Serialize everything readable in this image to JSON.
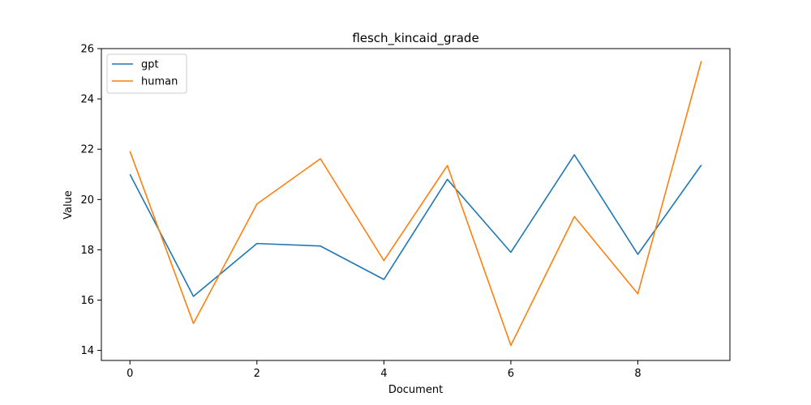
{
  "chart_data": {
    "type": "line",
    "title": "flesch_kincaid_grade",
    "xlabel": "Document",
    "ylabel": "Value",
    "x": [
      0,
      1,
      2,
      3,
      4,
      5,
      6,
      7,
      8,
      9
    ],
    "xlim": [
      -0.45,
      9.45
    ],
    "ylim": [
      13.6,
      26.0
    ],
    "xticks": [
      0,
      2,
      4,
      6,
      8
    ],
    "yticks": [
      14,
      16,
      18,
      20,
      22,
      24,
      26
    ],
    "grid": false,
    "legend_position": "top-left",
    "series": [
      {
        "name": "gpt",
        "color": "#1f77b4",
        "values": [
          21.0,
          16.15,
          18.25,
          18.15,
          16.82,
          20.8,
          17.9,
          21.78,
          17.82,
          21.37
        ]
      },
      {
        "name": "human",
        "color": "#ff7f0e",
        "values": [
          21.92,
          15.07,
          19.82,
          21.62,
          17.57,
          21.35,
          14.2,
          19.32,
          16.25,
          25.5
        ]
      }
    ]
  }
}
